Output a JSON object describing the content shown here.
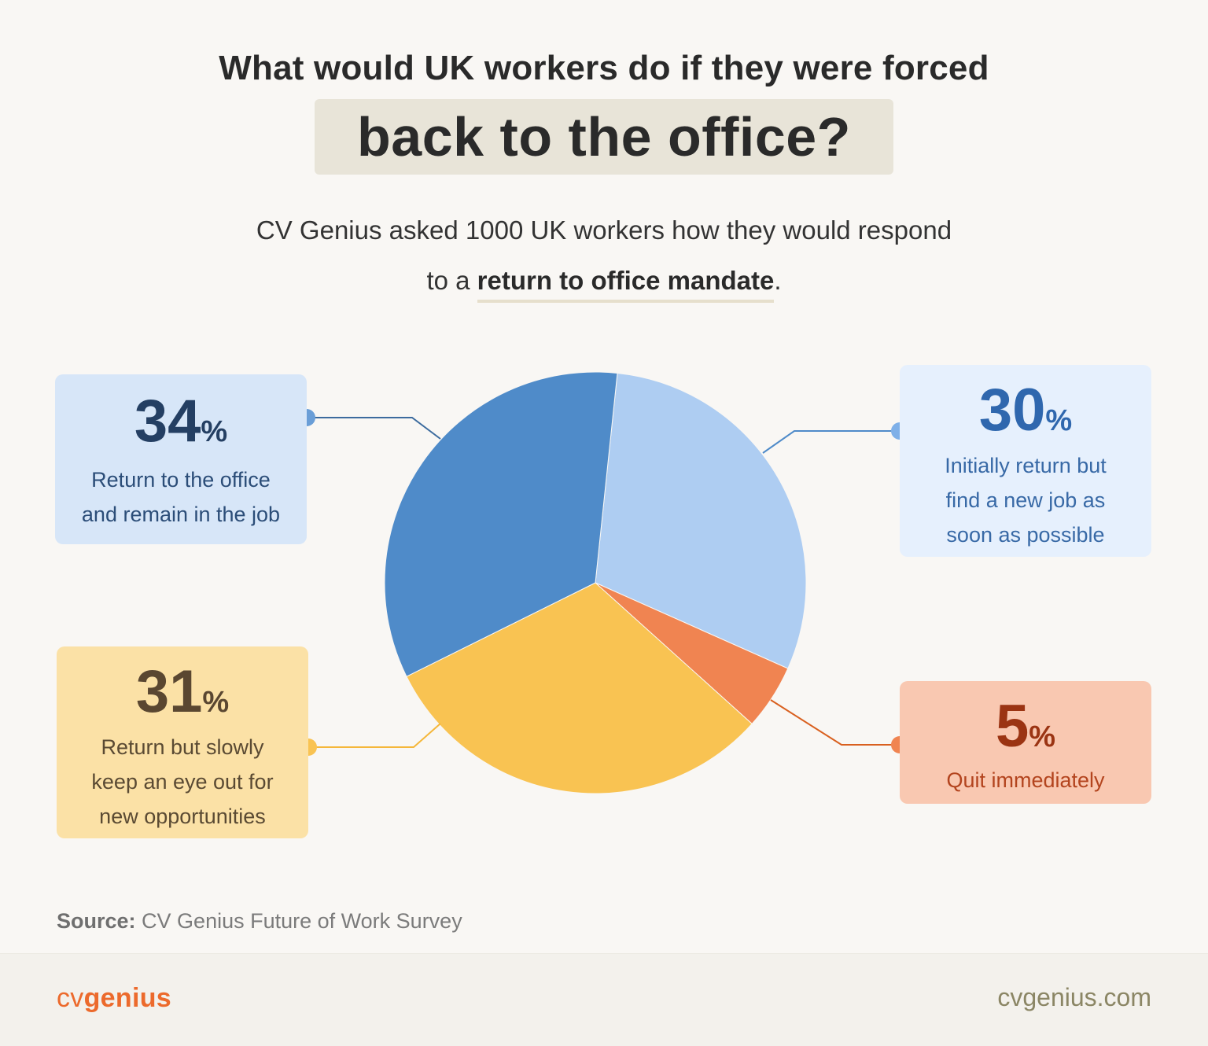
{
  "header": {
    "title_line1": "What would UK workers do if they were forced",
    "title_line2": "back to the office?",
    "subtitle_line1": "CV Genius asked 1000 UK workers how they would respond",
    "subtitle_line2_prefix": "to a ",
    "subtitle_line2_emph": "return to office mandate",
    "subtitle_line2_suffix": "."
  },
  "colors": {
    "dark_blue": "#4f8bc9",
    "light_blue": "#aecdf2",
    "orange": "#f08451",
    "yellow": "#f9c352"
  },
  "chart_data": {
    "type": "pie",
    "title": "",
    "slices": [
      {
        "label": "Initially return but find a new job as soon as possible",
        "value": 30,
        "color": "#aecdf2",
        "line_color": "#4f8bc9"
      },
      {
        "label": "Quit immediately",
        "value": 5,
        "color": "#f08451",
        "line_color": "#d9601f"
      },
      {
        "label": "Return but slowly keep an eye out for new opportunities",
        "value": 31,
        "color": "#f9c352",
        "line_color": "#f5b73a"
      },
      {
        "label": "Return to the office and remain in the job",
        "value": 34,
        "color": "#4f8bc9",
        "line_color": "#3c6b9e"
      }
    ]
  },
  "cards": {
    "c34": {
      "num": "34",
      "sym": "%",
      "l1": "Return to the office",
      "l2": "and remain in the job"
    },
    "c30": {
      "num": "30",
      "sym": "%",
      "l1": "Initially return but",
      "l2": "find a new job as",
      "l3": "soon as possible"
    },
    "c31": {
      "num": "31",
      "sym": "%",
      "l1": "Return but slowly",
      "l2": "keep an eye out for",
      "l3": "new opportunities"
    },
    "c5": {
      "num": "5",
      "sym": "%",
      "l1": "Quit immediately"
    }
  },
  "source": {
    "label": "Source:",
    "text": "CV Genius Future of Work Survey"
  },
  "footer": {
    "logo_light": "cv",
    "logo_bold": "genius",
    "site": "cvgenius.com"
  }
}
